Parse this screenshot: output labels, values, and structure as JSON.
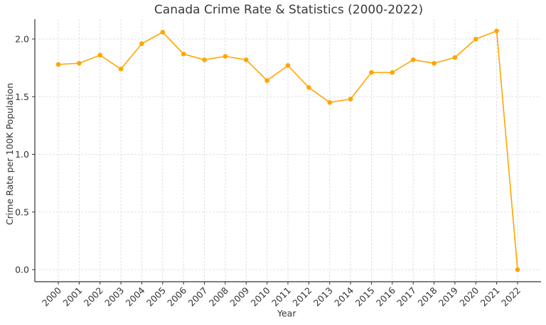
{
  "chart_data": {
    "type": "line",
    "title": "Canada Crime Rate & Statistics (2000-2022)",
    "xlabel": "Year",
    "ylabel": "Crime Rate per 100K Population",
    "categories": [
      "2000",
      "2001",
      "2002",
      "2003",
      "2004",
      "2005",
      "2006",
      "2007",
      "2008",
      "2009",
      "2010",
      "2011",
      "2012",
      "2013",
      "2014",
      "2015",
      "2016",
      "2017",
      "2018",
      "2019",
      "2020",
      "2021",
      "2022"
    ],
    "series": [
      {
        "name": "Crime Rate",
        "color": "#FFA500",
        "values": [
          1.78,
          1.79,
          1.86,
          1.74,
          1.96,
          2.06,
          1.87,
          1.82,
          1.85,
          1.82,
          1.64,
          1.77,
          1.58,
          1.45,
          1.48,
          1.71,
          1.71,
          1.82,
          1.79,
          1.84,
          2.0,
          2.07,
          0.0
        ]
      }
    ],
    "yticks": [
      "0.0",
      "0.5",
      "1.0",
      "1.5",
      "2.0"
    ],
    "ylim": [
      -0.1,
      2.17
    ],
    "grid": true,
    "legend": null
  }
}
